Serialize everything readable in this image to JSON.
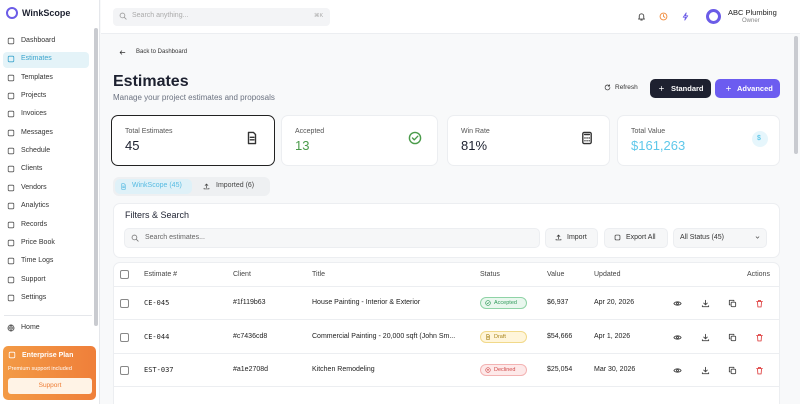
{
  "brand": "WinkScope",
  "topbar": {
    "search_placeholder": "Search anything...",
    "shortcut": "⌘K",
    "user_name": "ABC Plumbing",
    "user_role": "Owner"
  },
  "sidebar": {
    "nav": [
      "Dashboard",
      "Estimates",
      "Templates",
      "Projects",
      "Invoices",
      "Messages",
      "Schedule",
      "Clients",
      "Vendors",
      "Analytics",
      "Records",
      "Price Book",
      "Time Logs",
      "Support",
      "Settings"
    ],
    "home": "Home",
    "plan": {
      "title": "Enterprise Plan",
      "subtitle": "Premium support included",
      "button": "Support"
    }
  },
  "header": {
    "back": "Back to Dashboard",
    "title": "Estimates",
    "subtitle": "Manage your project estimates and proposals",
    "refresh": "Refresh",
    "standard": "Standard",
    "advanced": "Advanced"
  },
  "stats": [
    {
      "label": "Total Estimates",
      "value": "45"
    },
    {
      "label": "Accepted",
      "value": "13"
    },
    {
      "label": "Win Rate",
      "value": "81%"
    },
    {
      "label": "Total Value",
      "value": "$161,263",
      "icon": "$"
    }
  ],
  "tabs": [
    "WinkScope (45)",
    "Imported (6)"
  ],
  "filters": {
    "title": "Filters & Search",
    "search_placeholder": "Search estimates...",
    "import": "Import",
    "export": "Export All",
    "status": "All Status (45)"
  },
  "table": {
    "columns": [
      "Estimate #",
      "Client",
      "Title",
      "Status",
      "Value",
      "Updated",
      "Actions"
    ],
    "rows": [
      [
        "CE-045",
        "#1f119b63",
        "House Painting - Interior & Exterior",
        "Accepted",
        "$6,937",
        "Apr 20, 2026"
      ],
      [
        "CE-044",
        "#c7436cd8",
        "Commercial Painting - 20,000 sqft (John Sm...",
        "Draft",
        "$54,666",
        "Apr 1, 2026"
      ],
      [
        "EST-037",
        "#a1e2708d",
        "Kitchen Remodeling",
        "Declined",
        "$25,054",
        "Mar 30, 2026"
      ]
    ]
  }
}
